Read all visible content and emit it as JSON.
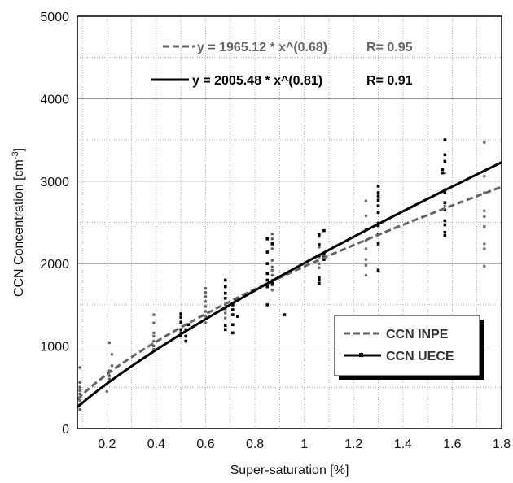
{
  "chart_data": {
    "type": "scatter",
    "xlabel": "Super-saturation [%]",
    "ylabel": "CCN Concentration [cm",
    "ylabel_sup": "-3",
    "ylabel_end": "]",
    "xlim": [
      0.08,
      1.8
    ],
    "ylim": [
      0,
      5000
    ],
    "x_ticks": [
      0.2,
      0.4,
      0.6,
      0.8,
      1,
      1.2,
      1.4,
      1.6,
      1.8
    ],
    "x_tick_labels": [
      "0.2",
      "0.4",
      "0.6",
      "0.8",
      "1",
      "1.2",
      "1.4",
      "1.6",
      "1.8"
    ],
    "y_ticks": [
      0,
      1000,
      2000,
      3000,
      4000,
      5000
    ],
    "y_tick_labels": [
      "0",
      "1000",
      "2000",
      "3000",
      "4000",
      "5000"
    ],
    "grid": true,
    "legend_position": "bottom-right",
    "series": [
      {
        "name": "CCN INPE",
        "color": "#666666",
        "line_style": "dashed",
        "marker": "circle",
        "fit": {
          "a": 1965.12,
          "b": 0.68
        },
        "equation": "y = 1965.12 * x^(0.68)",
        "r_label": "R= 0.95",
        "points": [
          [
            0.09,
            230
          ],
          [
            0.09,
            290
          ],
          [
            0.09,
            340
          ],
          [
            0.09,
            380
          ],
          [
            0.09,
            420
          ],
          [
            0.09,
            460
          ],
          [
            0.09,
            500
          ],
          [
            0.09,
            560
          ],
          [
            0.09,
            740
          ],
          [
            0.2,
            450
          ],
          [
            0.2,
            540
          ],
          [
            0.21,
            600
          ],
          [
            0.21,
            640
          ],
          [
            0.21,
            700
          ],
          [
            0.22,
            760
          ],
          [
            0.22,
            900
          ],
          [
            0.21,
            1040
          ],
          [
            0.39,
            960
          ],
          [
            0.39,
            1000
          ],
          [
            0.39,
            1060
          ],
          [
            0.39,
            1120
          ],
          [
            0.39,
            1160
          ],
          [
            0.39,
            1280
          ],
          [
            0.39,
            1380
          ],
          [
            0.6,
            1280
          ],
          [
            0.6,
            1360
          ],
          [
            0.6,
            1420
          ],
          [
            0.6,
            1480
          ],
          [
            0.6,
            1540
          ],
          [
            0.6,
            1600
          ],
          [
            0.6,
            1650
          ],
          [
            0.6,
            1700
          ],
          [
            0.68,
            1340
          ],
          [
            0.68,
            1400
          ],
          [
            0.68,
            1450
          ],
          [
            0.68,
            1500
          ],
          [
            0.87,
            1680
          ],
          [
            0.87,
            1740
          ],
          [
            0.87,
            1800
          ],
          [
            0.87,
            1860
          ],
          [
            0.87,
            1920
          ],
          [
            0.87,
            1960
          ],
          [
            0.87,
            2040
          ],
          [
            0.87,
            2180
          ],
          [
            0.87,
            2300
          ],
          [
            0.87,
            2360
          ],
          [
            1.06,
            1950
          ],
          [
            1.06,
            2000
          ],
          [
            1.06,
            2080
          ],
          [
            1.06,
            2200
          ],
          [
            1.06,
            2330
          ],
          [
            1.25,
            1860
          ],
          [
            1.25,
            1980
          ],
          [
            1.25,
            2050
          ],
          [
            1.25,
            2180
          ],
          [
            1.25,
            2280
          ],
          [
            1.25,
            2420
          ],
          [
            1.25,
            2580
          ],
          [
            1.25,
            2760
          ],
          [
            1.57,
            2700
          ],
          [
            1.57,
            2900
          ],
          [
            1.57,
            3100
          ],
          [
            1.73,
            1970
          ],
          [
            1.73,
            2180
          ],
          [
            1.73,
            2240
          ],
          [
            1.73,
            2450
          ],
          [
            1.73,
            2570
          ],
          [
            1.73,
            2640
          ],
          [
            1.73,
            2860
          ],
          [
            1.73,
            3060
          ],
          [
            1.73,
            3470
          ]
        ]
      },
      {
        "name": "CCN UECE",
        "color": "#000000",
        "line_style": "solid",
        "marker": "square",
        "fit": {
          "a": 2005.48,
          "b": 0.81
        },
        "equation": "y = 2005.48 * x^(0.81)",
        "r_label": "R= 0.91",
        "points": [
          [
            0.5,
            1120
          ],
          [
            0.5,
            1160
          ],
          [
            0.5,
            1200
          ],
          [
            0.5,
            1290
          ],
          [
            0.5,
            1350
          ],
          [
            0.5,
            1390
          ],
          [
            0.52,
            1060
          ],
          [
            0.52,
            1120
          ],
          [
            0.52,
            1200
          ],
          [
            0.53,
            1260
          ],
          [
            0.68,
            1200
          ],
          [
            0.68,
            1250
          ],
          [
            0.68,
            1580
          ],
          [
            0.68,
            1640
          ],
          [
            0.68,
            1720
          ],
          [
            0.68,
            1800
          ],
          [
            0.71,
            1160
          ],
          [
            0.71,
            1260
          ],
          [
            0.71,
            1380
          ],
          [
            0.71,
            1440
          ],
          [
            0.71,
            1500
          ],
          [
            0.73,
            1360
          ],
          [
            0.85,
            1500
          ],
          [
            0.85,
            1720
          ],
          [
            0.85,
            1800
          ],
          [
            0.85,
            1880
          ],
          [
            0.85,
            2000
          ],
          [
            0.85,
            2140
          ],
          [
            0.85,
            2300
          ],
          [
            0.87,
            1760
          ],
          [
            0.87,
            2240
          ],
          [
            0.92,
            1380
          ],
          [
            1.06,
            1760
          ],
          [
            1.06,
            1800
          ],
          [
            1.06,
            1830
          ],
          [
            1.06,
            2100
          ],
          [
            1.06,
            2230
          ],
          [
            1.06,
            2350
          ],
          [
            1.08,
            2050
          ],
          [
            1.08,
            2080
          ],
          [
            1.08,
            2120
          ],
          [
            1.08,
            2400
          ],
          [
            1.3,
            1920
          ],
          [
            1.3,
            2240
          ],
          [
            1.3,
            2360
          ],
          [
            1.3,
            2460
          ],
          [
            1.3,
            2490
          ],
          [
            1.3,
            2620
          ],
          [
            1.3,
            2700
          ],
          [
            1.3,
            2770
          ],
          [
            1.3,
            2820
          ],
          [
            1.3,
            2860
          ],
          [
            1.3,
            2940
          ],
          [
            1.56,
            3100
          ],
          [
            1.56,
            3140
          ],
          [
            1.57,
            2340
          ],
          [
            1.57,
            2380
          ],
          [
            1.57,
            2470
          ],
          [
            1.57,
            2520
          ],
          [
            1.57,
            2650
          ],
          [
            1.57,
            2740
          ],
          [
            1.57,
            2860
          ],
          [
            1.57,
            3240
          ],
          [
            1.57,
            3320
          ],
          [
            1.57,
            3500
          ]
        ]
      }
    ]
  }
}
